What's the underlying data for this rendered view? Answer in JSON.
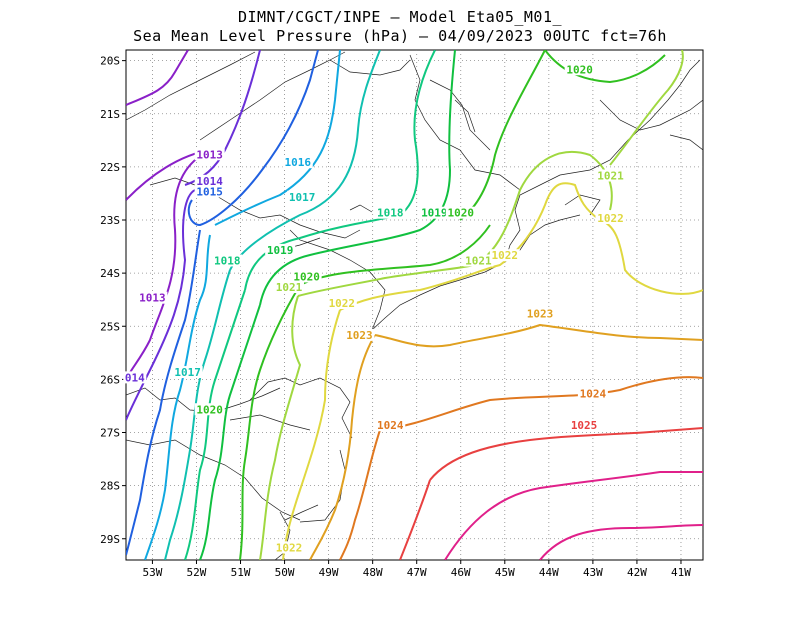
{
  "title_line1": "DIMNT/CGCT/INPE –  Model Eta05_M01_",
  "title_line2": "Sea Mean Level Pressure (hPa) – 04/09/2023 00UTC fct=76h",
  "axes": {
    "lon_ticks": [
      "53W",
      "52W",
      "51W",
      "50W",
      "49W",
      "48W",
      "47W",
      "46W",
      "45W",
      "44W",
      "43W",
      "42W",
      "41W"
    ],
    "lat_ticks": [
      "20S",
      "21S",
      "22S",
      "23S",
      "24S",
      "25S",
      "26S",
      "27S",
      "28S",
      "29S"
    ]
  },
  "colors": {
    "1013": "#8a20c8",
    "1014": "#6a30d8",
    "1015": "#2060e0",
    "1016": "#10a8e0",
    "1017": "#10c0b0",
    "1018": "#10c880",
    "1019": "#10c040",
    "1020": "#30c020",
    "1021": "#a0d840",
    "1022": "#e0d840",
    "1023": "#e0a020",
    "1024": "#e07820",
    "1025": "#e84040",
    "1026": "#e0208a"
  },
  "chart_data": {
    "type": "contour_map",
    "variable": "Sea Mean Level Pressure (hPa)",
    "x_range": [
      "53.6W",
      "40.5W"
    ],
    "y_range": [
      "19.8S",
      "29.4S"
    ],
    "isobar_labels": [
      {
        "value": "1013",
        "lon": -51.7,
        "lat": -21.8
      },
      {
        "value": "1013",
        "lon": -53.0,
        "lat": -24.5
      },
      {
        "value": "1014",
        "lon": -51.7,
        "lat": -22.3
      },
      {
        "value": "014",
        "lon": -53.4,
        "lat": -26.0
      },
      {
        "value": "1015",
        "lon": -51.7,
        "lat": -22.5
      },
      {
        "value": "1016",
        "lon": -49.7,
        "lat": -21.95
      },
      {
        "value": "1017",
        "lon": -49.6,
        "lat": -22.6
      },
      {
        "value": "1017",
        "lon": -52.2,
        "lat": -25.9
      },
      {
        "value": "1018",
        "lon": -47.6,
        "lat": -22.9
      },
      {
        "value": "1018",
        "lon": -51.3,
        "lat": -23.8
      },
      {
        "value": "1019",
        "lon": -46.6,
        "lat": -22.9
      },
      {
        "value": "1019",
        "lon": -50.1,
        "lat": -23.6
      },
      {
        "value": "1020",
        "lon": -46.0,
        "lat": -22.9
      },
      {
        "value": "1020",
        "lon": -43.3,
        "lat": -20.2
      },
      {
        "value": "1020",
        "lon": -49.5,
        "lat": -24.1
      },
      {
        "value": "1020",
        "lon": -51.7,
        "lat": -26.6
      },
      {
        "value": "1021",
        "lon": -42.6,
        "lat": -22.2
      },
      {
        "value": "1021",
        "lon": -45.6,
        "lat": -23.8
      },
      {
        "value": "1021",
        "lon": -49.9,
        "lat": -24.3
      },
      {
        "value": "1022",
        "lon": -42.6,
        "lat": -23.0
      },
      {
        "value": "1022",
        "lon": -45.0,
        "lat": -23.7
      },
      {
        "value": "1022",
        "lon": -48.7,
        "lat": -24.6
      },
      {
        "value": "1022",
        "lon": -49.9,
        "lat": -29.2
      },
      {
        "value": "1023",
        "lon": -44.2,
        "lat": -24.8
      },
      {
        "value": "1023",
        "lon": -48.3,
        "lat": -25.2
      },
      {
        "value": "1024",
        "lon": -43.0,
        "lat": -26.3
      },
      {
        "value": "1024",
        "lon": -47.6,
        "lat": -26.9
      },
      {
        "value": "1025",
        "lon": -43.2,
        "lat": -26.9
      }
    ]
  }
}
